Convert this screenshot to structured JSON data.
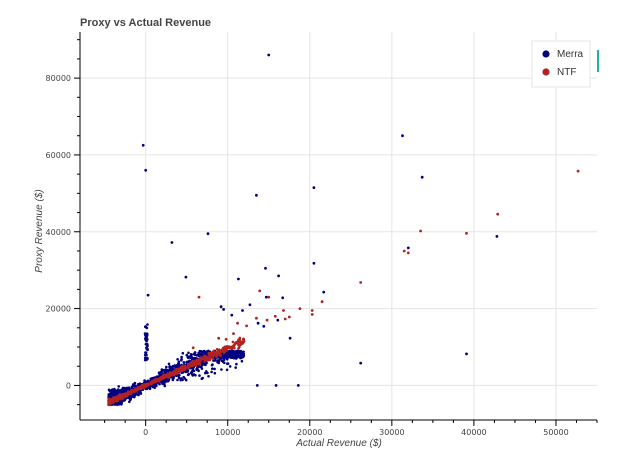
{
  "chart_data": {
    "type": "scatter",
    "title": "Proxy vs Actual Revenue",
    "xlabel": "Actual Revenue ($)",
    "ylabel": "Proxy Revenue ($)",
    "xlim": [
      -8000,
      55000
    ],
    "ylim": [
      -9000,
      92000
    ],
    "x_ticks": [
      0,
      10000,
      20000,
      30000,
      40000,
      50000
    ],
    "y_ticks": [
      0,
      20000,
      40000,
      60000,
      80000
    ],
    "x_tick_labels": [
      "0",
      "10000",
      "20000",
      "30000",
      "40000",
      "50000"
    ],
    "y_tick_labels": [
      "0",
      "20000",
      "40000",
      "60000",
      "80000"
    ],
    "grid": true,
    "legend_position": "top-right",
    "series": [
      {
        "name": "Merra",
        "color": "#000080",
        "x": [
          15000,
          -300,
          0,
          31300,
          33700,
          3200,
          7600,
          13500,
          20500,
          32000,
          42800,
          14600,
          20500,
          4900,
          11300,
          14700,
          16200,
          16700,
          21700,
          12700,
          26200,
          39100,
          15900,
          13600,
          18600,
          300,
          0,
          9200,
          9500,
          10500,
          11800,
          13700,
          14400,
          16100,
          17600
        ],
        "y": [
          86000,
          62500,
          56000,
          65000,
          54200,
          37200,
          39500,
          49500,
          51500,
          35800,
          38800,
          30500,
          31800,
          28200,
          27700,
          23000,
          28500,
          22800,
          24300,
          21000,
          5800,
          8200,
          0,
          0,
          0,
          23500,
          15200,
          20500,
          19800,
          18300,
          19500,
          16200,
          15400,
          17000,
          12300
        ],
        "cluster": {
          "x_range": [
            -4500,
            12000
          ],
          "y_range": [
            -5000,
            16000
          ]
        }
      },
      {
        "name": "NTF",
        "color": "#b22222",
        "x": [
          52700,
          42900,
          39100,
          33500,
          32000,
          31500,
          26200,
          21500,
          20300,
          20300,
          18800,
          17500,
          17000,
          16800,
          15800,
          15000,
          14800,
          13900,
          13500,
          12300,
          11200,
          10700,
          9800,
          8900,
          6500,
          5800
        ],
        "y": [
          55800,
          44600,
          39600,
          40200,
          34500,
          35000,
          26800,
          21800,
          19500,
          18500,
          20000,
          17800,
          17300,
          19500,
          18000,
          23000,
          17000,
          24600,
          17500,
          15500,
          16200,
          13500,
          12000,
          12300,
          23000,
          9800
        ],
        "trend": {
          "x_range": [
            -4500,
            12000
          ]
        }
      }
    ]
  }
}
